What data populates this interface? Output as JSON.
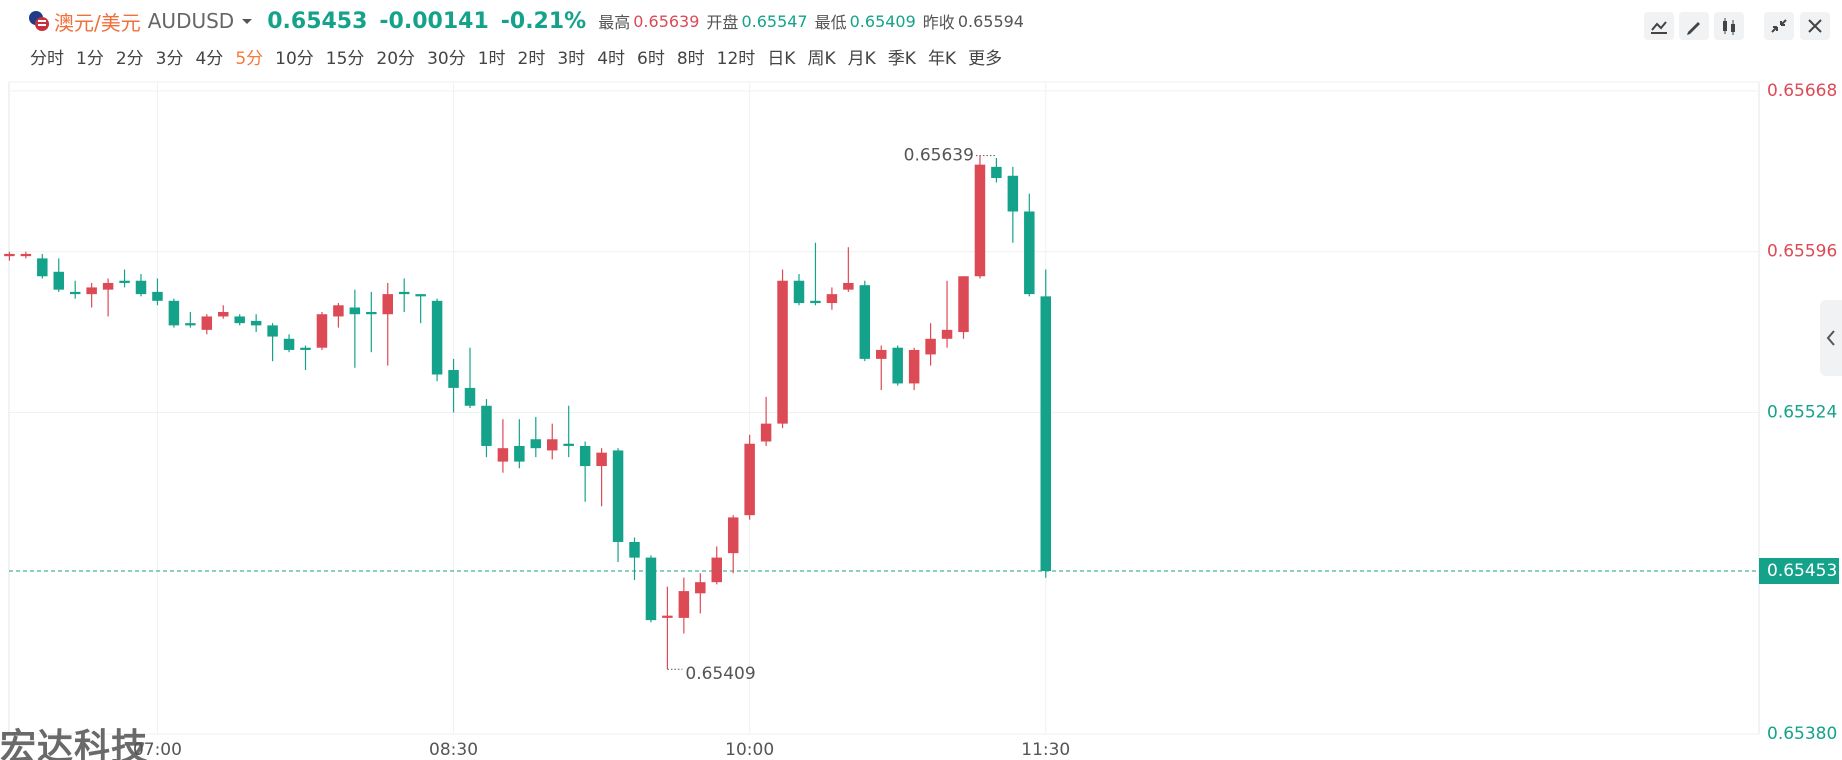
{
  "header": {
    "name": "澳元/美元",
    "symbol": "AUDUSD",
    "change": -0.00141,
    "change_pct": "-0.21%",
    "stat_labels": [
      "最高",
      "开盘",
      "最低",
      "昨收"
    ]
  },
  "periods": [
    "分时",
    "1分",
    "2分",
    "3分",
    "4分",
    "5分",
    "10分",
    "15分",
    "20分",
    "30分",
    "1时",
    "2时",
    "3时",
    "4时",
    "6时",
    "8时",
    "12时",
    "日K",
    "周K",
    "月K",
    "季K",
    "年K",
    "更多"
  ],
  "active_period_index": 5,
  "watermark": "宏达科技",
  "chart_data": {
    "type": "candlestick",
    "categories": [
      null,
      null,
      null,
      null,
      null,
      null,
      null,
      null,
      null,
      "07:00",
      null,
      null,
      null,
      null,
      null,
      null,
      null,
      null,
      null,
      null,
      null,
      null,
      null,
      null,
      null,
      null,
      null,
      "08:30",
      null,
      null,
      null,
      null,
      null,
      null,
      null,
      null,
      null,
      null,
      null,
      null,
      null,
      null,
      null,
      null,
      null,
      "10:00",
      null,
      null,
      null,
      null,
      null,
      null,
      null,
      null,
      null,
      null,
      null,
      null,
      null,
      null,
      null,
      null,
      null,
      "11:30"
    ],
    "open": [
      0.65594,
      0.65594,
      0.65593,
      0.65587,
      0.65578,
      0.65577,
      0.65579,
      0.65583,
      0.65583,
      0.65578,
      0.65574,
      0.65564,
      0.65561,
      0.65567,
      0.65567,
      0.65565,
      0.65563,
      0.65557,
      0.65553,
      0.65553,
      0.65567,
      0.65571,
      0.65569,
      0.65568,
      0.65578,
      0.65577,
      0.65574,
      0.65543,
      0.65535,
      0.65527,
      0.65502,
      0.65509,
      0.65512,
      0.65507,
      0.6551,
      0.65509,
      0.655,
      0.65507,
      0.65466,
      0.65459,
      0.65432,
      0.65432,
      0.65443,
      0.65448,
      0.65461,
      0.65478,
      0.65511,
      0.65519,
      0.65583,
      0.65574,
      0.65573,
      0.65579,
      0.65581,
      0.65548,
      0.65553,
      0.65537,
      0.6555,
      0.65557,
      0.6556,
      0.65585,
      0.65634,
      0.6563,
      0.65614,
      0.65576
    ],
    "high": [
      0.65596,
      0.65596,
      0.65595,
      0.65593,
      0.65583,
      0.65582,
      0.65584,
      0.65588,
      0.65586,
      0.65584,
      0.65575,
      0.65569,
      0.65568,
      0.65572,
      0.65568,
      0.65568,
      0.65564,
      0.65559,
      0.65554,
      0.65569,
      0.65573,
      0.65579,
      0.65578,
      0.65582,
      0.65584,
      0.65577,
      0.65575,
      0.65548,
      0.65553,
      0.6553,
      0.65521,
      0.65521,
      0.65522,
      0.65519,
      0.65527,
      0.65511,
      0.65508,
      0.65508,
      0.65468,
      0.6546,
      0.65446,
      0.6545,
      0.65452,
      0.65464,
      0.65478,
      0.65514,
      0.65531,
      0.65588,
      0.65586,
      0.656,
      0.6558,
      0.65598,
      0.65583,
      0.65554,
      0.65554,
      0.65553,
      0.65564,
      0.65583,
      0.65585,
      0.65639,
      0.65638,
      0.65634,
      0.65622,
      0.65588
    ],
    "low": [
      0.65592,
      0.65593,
      0.65584,
      0.65578,
      0.65575,
      0.65571,
      0.65567,
      0.6558,
      0.65576,
      0.65572,
      0.65562,
      0.65562,
      0.65559,
      0.65566,
      0.65563,
      0.6556,
      0.65547,
      0.65551,
      0.65543,
      0.65552,
      0.65562,
      0.65544,
      0.65551,
      0.65545,
      0.65569,
      0.65564,
      0.65538,
      0.65524,
      0.65526,
      0.65504,
      0.65497,
      0.65499,
      0.65504,
      0.65503,
      0.65504,
      0.65484,
      0.65482,
      0.65457,
      0.65449,
      0.6543,
      0.65409,
      0.65425,
      0.65434,
      0.65447,
      0.65452,
      0.65476,
      0.65509,
      0.65517,
      0.65572,
      0.65572,
      0.6557,
      0.65578,
      0.65547,
      0.65534,
      0.65536,
      0.65534,
      0.65545,
      0.65553,
      0.65557,
      0.65584,
      0.65627,
      0.656,
      0.65576,
      0.6545
    ],
    "close": [
      0.65595,
      0.65595,
      0.65585,
      0.65579,
      0.65577,
      0.6558,
      0.65582,
      0.65582,
      0.65577,
      0.65574,
      0.65563,
      0.65563,
      0.65567,
      0.65569,
      0.65564,
      0.65563,
      0.65558,
      0.65552,
      0.65552,
      0.65568,
      0.65572,
      0.65568,
      0.65568,
      0.65577,
      0.65577,
      0.65576,
      0.65541,
      0.65535,
      0.65527,
      0.65509,
      0.65508,
      0.65502,
      0.65508,
      0.65512,
      0.65509,
      0.655,
      0.65506,
      0.65466,
      0.65459,
      0.65431,
      0.65433,
      0.65444,
      0.65448,
      0.65459,
      0.65477,
      0.6551,
      0.65519,
      0.65583,
      0.65573,
      0.65573,
      0.65577,
      0.65582,
      0.65548,
      0.65552,
      0.65537,
      0.65552,
      0.65557,
      0.65561,
      0.65585,
      0.65635,
      0.65629,
      0.65614,
      0.65577,
      0.65453
    ],
    "open_price": 0.65547,
    "prev_close": 0.65594,
    "up_color": "#dc4a55",
    "down_color": "#14a38a",
    "ylim": [
      0.6538,
      0.65672
    ],
    "yticks": [
      0.65668,
      0.65596,
      0.65524,
      {
        "value": 0.6538,
        "label": "0.65380"
      }
    ],
    "grid": true
  }
}
